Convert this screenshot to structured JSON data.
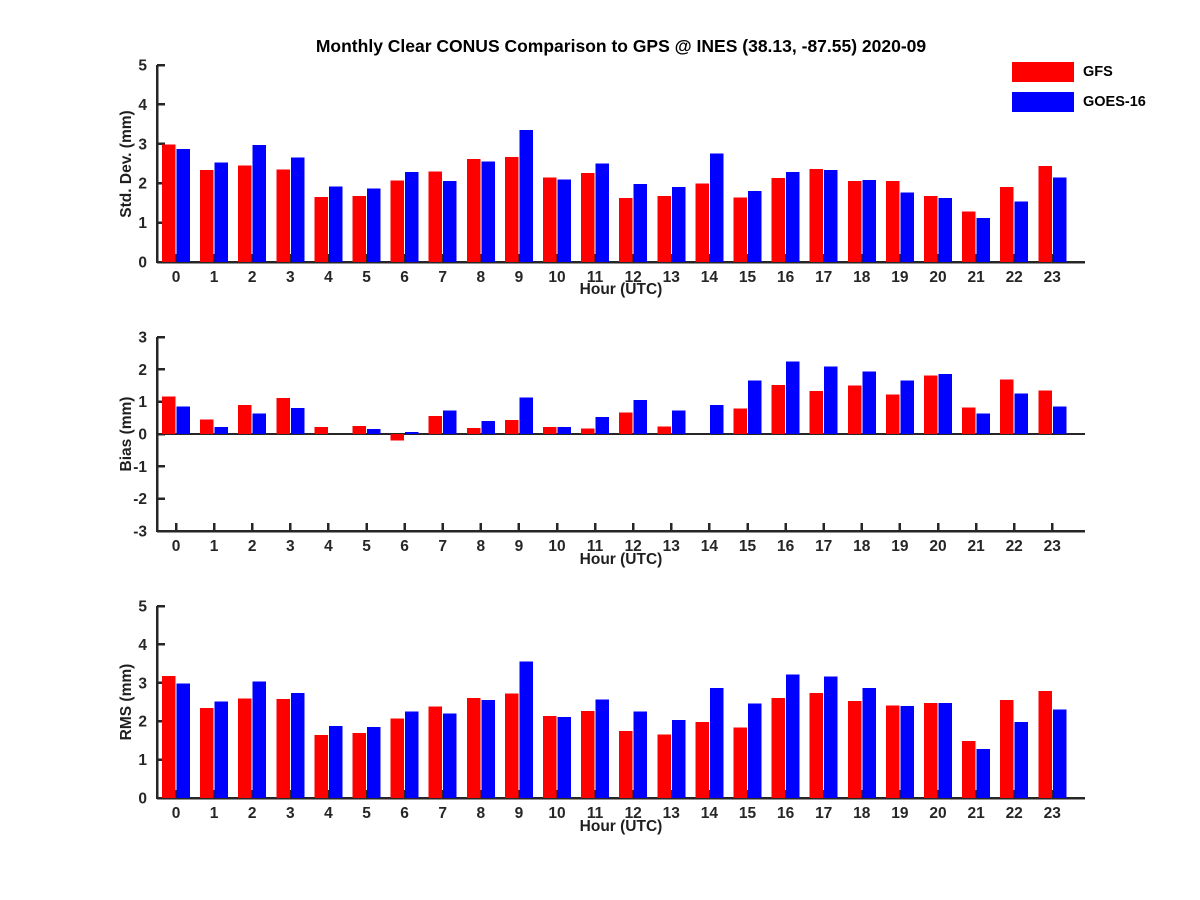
{
  "figure": {
    "title": "Monthly Clear CONUS Comparison to GPS @ INES (38.13, -87.55) 2020-09",
    "legend": {
      "position": "top-right-outside",
      "items": [
        {
          "label": "GFS",
          "color": "#ff0000"
        },
        {
          "label": "GOES-16",
          "color": "#0000ff"
        }
      ]
    },
    "colors": {
      "axis": "#262626",
      "background": "#ffffff",
      "title_text": "#000000"
    }
  },
  "chart_data": [
    {
      "type": "bar",
      "name": "std-dev",
      "ylabel": "Std. Dev. (mm)",
      "xlabel": "Hour (UTC)",
      "ylim": [
        0,
        5
      ],
      "yticks": [
        0,
        1,
        2,
        3,
        4,
        5
      ],
      "grid": false,
      "legend_entries": [
        "GFS",
        "GOES-16"
      ],
      "categories": [
        "0",
        "1",
        "2",
        "3",
        "4",
        "5",
        "6",
        "7",
        "8",
        "9",
        "10",
        "11",
        "12",
        "13",
        "14",
        "15",
        "16",
        "17",
        "18",
        "19",
        "20",
        "21",
        "22",
        "23"
      ],
      "series": [
        {
          "name": "GFS",
          "color": "#ff0000",
          "values": [
            2.98,
            2.33,
            2.45,
            2.35,
            1.65,
            1.68,
            2.07,
            2.3,
            2.62,
            2.67,
            2.14,
            2.26,
            1.63,
            1.68,
            1.99,
            1.64,
            2.13,
            2.36,
            2.05,
            2.06,
            1.68,
            1.28,
            1.9,
            2.44
          ]
        },
        {
          "name": "GOES-16",
          "color": "#0000ff",
          "values": [
            2.87,
            2.53,
            2.97,
            2.65,
            1.92,
            1.86,
            2.28,
            2.06,
            2.55,
            3.35,
            2.1,
            2.5,
            1.98,
            1.9,
            2.75,
            1.8,
            2.28,
            2.33,
            2.08,
            1.76,
            1.62,
            1.12,
            1.53,
            2.15
          ]
        }
      ]
    },
    {
      "type": "bar",
      "name": "bias",
      "ylabel": "Bias (mm)",
      "xlabel": "Hour (UTC)",
      "ylim": [
        -3,
        3
      ],
      "yticks": [
        -3,
        -2,
        -1,
        0,
        1,
        2,
        3
      ],
      "zero_line": true,
      "grid": false,
      "categories": [
        "0",
        "1",
        "2",
        "3",
        "4",
        "5",
        "6",
        "7",
        "8",
        "9",
        "10",
        "11",
        "12",
        "13",
        "14",
        "15",
        "16",
        "17",
        "18",
        "19",
        "20",
        "21",
        "22",
        "23"
      ],
      "series": [
        {
          "name": "GFS",
          "color": "#ff0000",
          "values": [
            1.16,
            0.45,
            0.89,
            1.11,
            0.22,
            0.25,
            -0.2,
            0.55,
            0.18,
            0.43,
            0.22,
            0.17,
            0.67,
            0.23,
            0.0,
            0.79,
            1.52,
            1.33,
            1.5,
            1.22,
            1.81,
            0.82,
            1.68,
            1.35
          ]
        },
        {
          "name": "GOES-16",
          "color": "#0000ff",
          "values": [
            0.85,
            0.21,
            0.64,
            0.8,
            0.0,
            0.16,
            0.06,
            0.73,
            0.4,
            1.13,
            0.21,
            0.52,
            1.05,
            0.72,
            0.89,
            1.66,
            2.24,
            2.09,
            1.93,
            1.66,
            1.85,
            0.64,
            1.26,
            0.85
          ]
        }
      ]
    },
    {
      "type": "bar",
      "name": "rms",
      "ylabel": "RMS (mm)",
      "xlabel": "Hour (UTC)",
      "ylim": [
        0,
        5
      ],
      "yticks": [
        0,
        1,
        2,
        3,
        4,
        5
      ],
      "grid": false,
      "categories": [
        "0",
        "1",
        "2",
        "3",
        "4",
        "5",
        "6",
        "7",
        "8",
        "9",
        "10",
        "11",
        "12",
        "13",
        "14",
        "15",
        "16",
        "17",
        "18",
        "19",
        "20",
        "21",
        "22",
        "23"
      ],
      "series": [
        {
          "name": "GFS",
          "color": "#ff0000",
          "values": [
            3.18,
            2.35,
            2.59,
            2.58,
            1.64,
            1.69,
            2.07,
            2.38,
            2.61,
            2.72,
            2.14,
            2.27,
            1.75,
            1.66,
            1.98,
            1.83,
            2.6,
            2.74,
            2.53,
            2.41,
            2.48,
            1.49,
            2.55,
            2.78
          ]
        },
        {
          "name": "GOES-16",
          "color": "#0000ff",
          "values": [
            2.98,
            2.51,
            3.03,
            2.74,
            1.88,
            1.85,
            2.25,
            2.2,
            2.55,
            3.55,
            2.11,
            2.56,
            2.25,
            2.03,
            2.87,
            2.46,
            3.21,
            3.16,
            2.86,
            2.4,
            2.48,
            1.28,
            1.98,
            2.31
          ]
        }
      ]
    }
  ]
}
